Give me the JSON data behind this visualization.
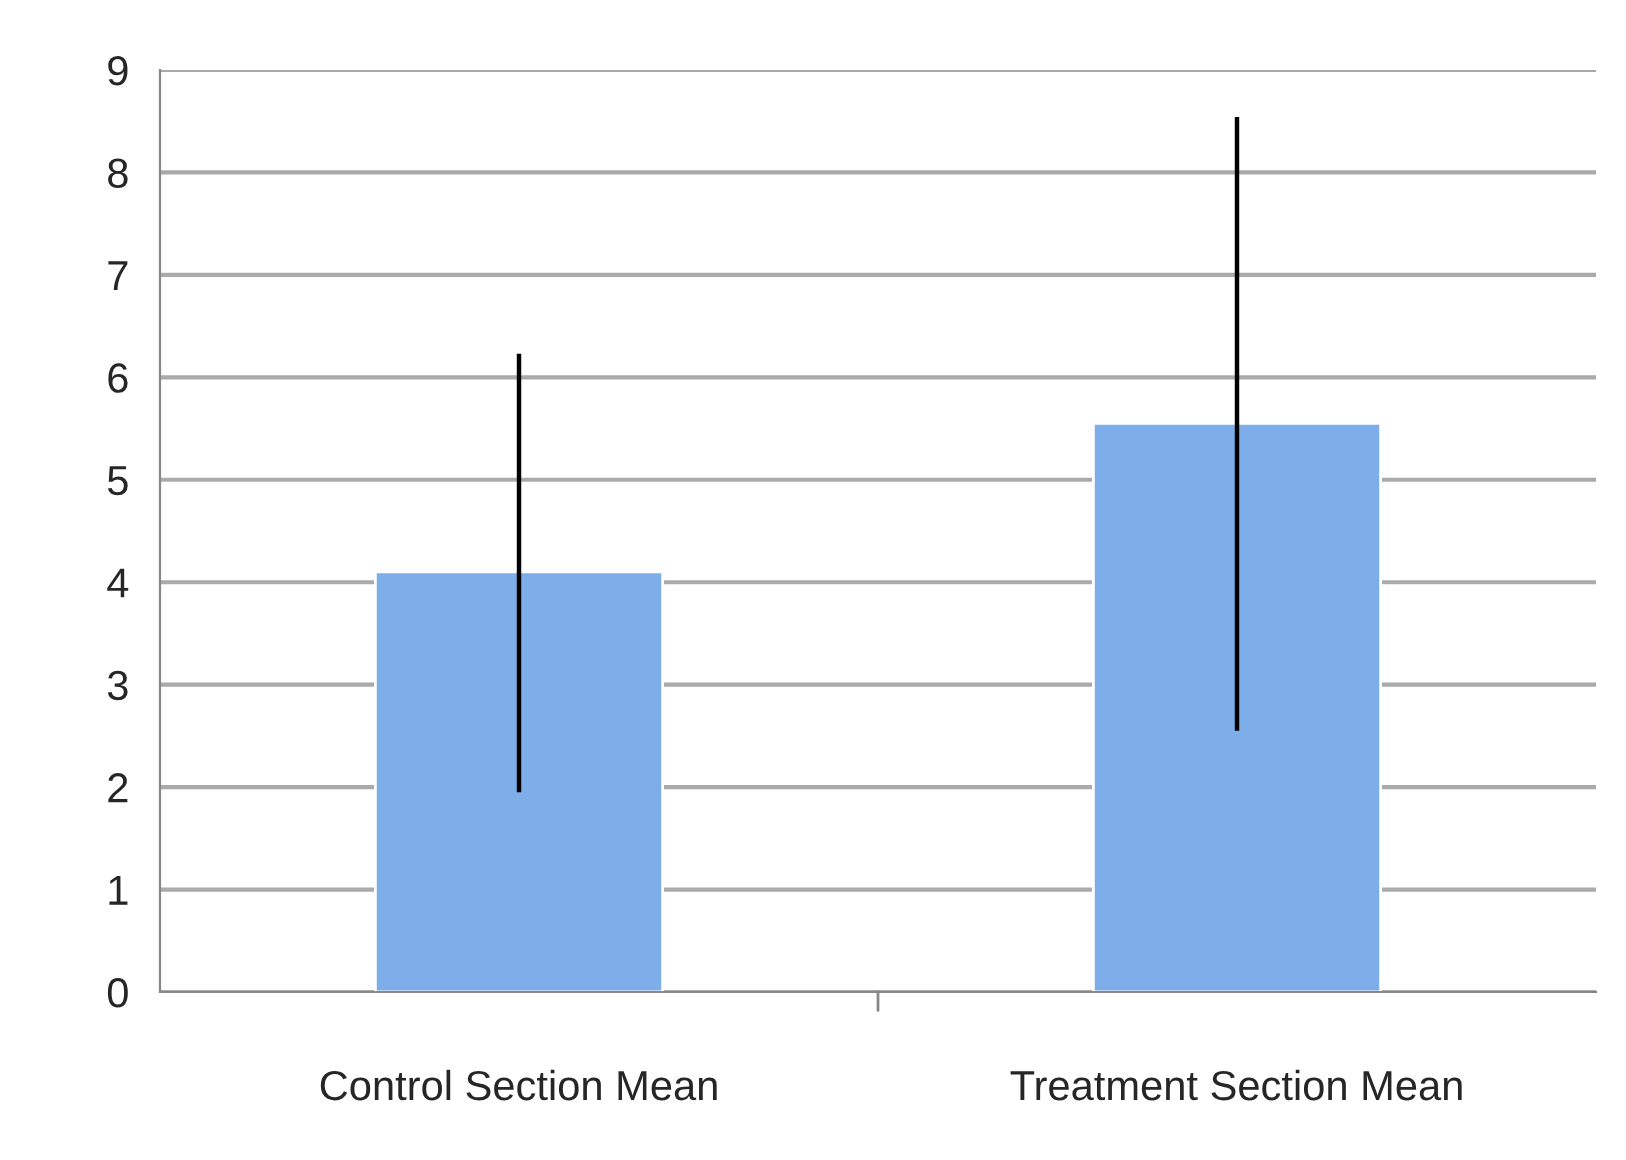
{
  "chart_data": {
    "type": "bar",
    "categories": [
      "Control Section Mean",
      "Treatment Section Mean"
    ],
    "values": [
      4.1,
      5.55
    ],
    "errors": [
      [
        1.95,
        6.23
      ],
      [
        2.55,
        8.54
      ]
    ],
    "color": "#7eaeea",
    "ylim": [
      0,
      9
    ],
    "yticks": [
      0,
      1,
      2,
      3,
      4,
      5,
      6,
      7,
      8,
      9
    ],
    "grid": "y"
  }
}
